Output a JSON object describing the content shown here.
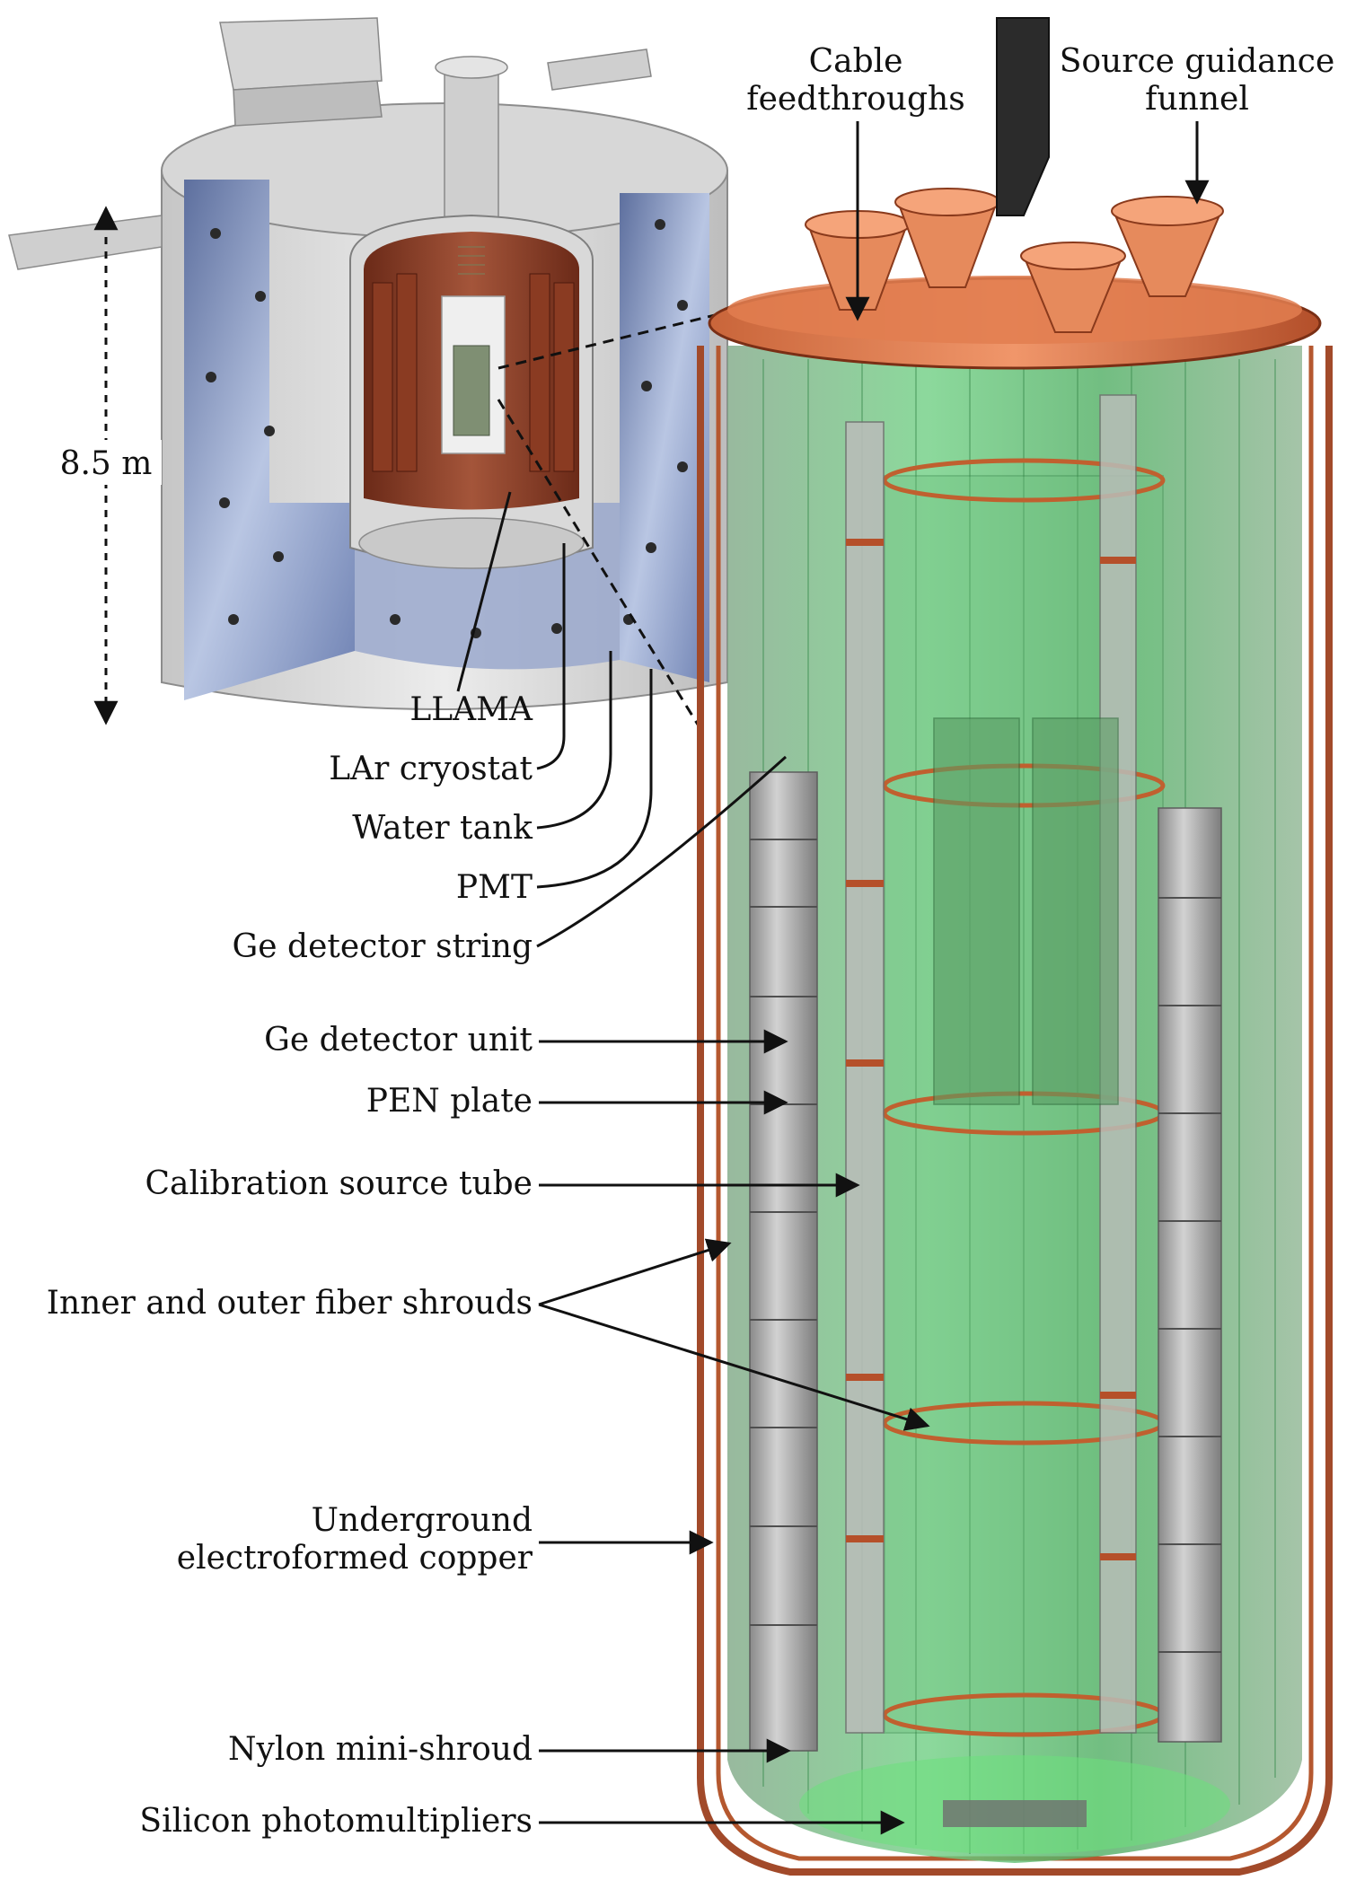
{
  "labels": {
    "cable_feedthroughs": [
      "Cable",
      "feedthroughs"
    ],
    "source_guidance_funnel": [
      "Source guidance",
      "funnel"
    ],
    "height": "8.5 m",
    "llama": "LLAMA",
    "lar_cryostat": "LAr cryostat",
    "water_tank": "Water tank",
    "pmt": "PMT",
    "ge_detector_string": "Ge detector string",
    "ge_detector_unit": "Ge detector unit",
    "pen_plate": "PEN plate",
    "calibration_source_tube": "Calibration source tube",
    "fiber_shrouds": "Inner and outer fiber shrouds",
    "electroformed_copper": [
      "Underground",
      "electroformed copper"
    ],
    "nylon_mini_shroud": "Nylon mini-shroud",
    "silicon_photomultipliers": "Silicon photomultipliers"
  },
  "colors": {
    "water_tank_interior": "#8d9fc8",
    "water_tank_shell": "#d9d9d9",
    "copper": "#b5522e",
    "copper_light": "#e07a4a",
    "shroud_green": "#5fbf6f",
    "ge_gray": "#a9a9a9",
    "leader": "#111111"
  }
}
